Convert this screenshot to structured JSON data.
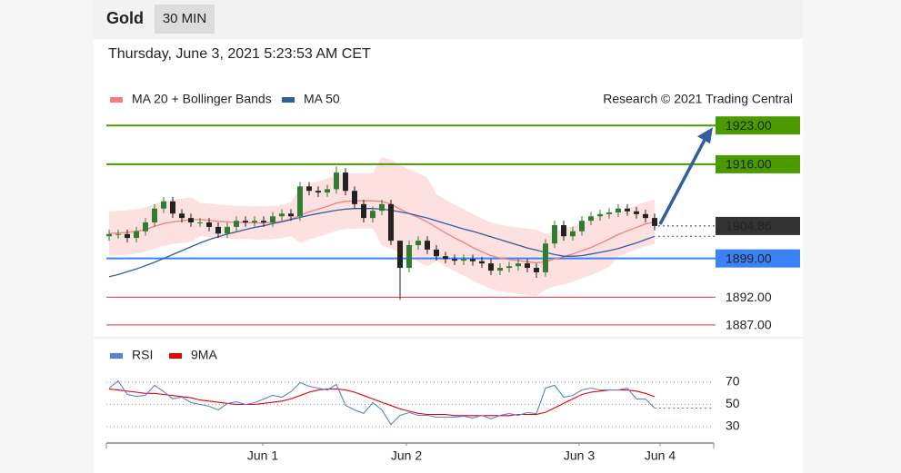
{
  "header": {
    "title": "Gold",
    "timeframe": "30 MIN",
    "timestamp": "Thursday, June 3, 2021 5:23:53 AM CET"
  },
  "chart_data": [
    {
      "type": "candlestick",
      "source": "Research © 2021 Trading Central",
      "x": [
        0,
        1,
        2,
        3,
        4,
        5,
        6,
        7,
        8,
        9,
        10,
        11,
        12,
        13,
        14,
        15,
        16,
        17,
        18,
        19,
        20,
        21,
        22,
        23,
        24,
        25,
        26,
        27,
        28,
        29,
        30,
        31,
        32,
        33,
        34,
        35,
        36,
        37,
        38,
        39,
        40,
        41,
        42,
        43,
        44,
        45,
        46,
        47,
        48,
        49,
        50,
        51,
        52,
        53,
        54,
        55,
        56,
        57,
        58,
        59,
        60
      ],
      "open": [
        1903.0,
        1903.4,
        1903.4,
        1902.7,
        1903.9,
        1905.5,
        1908.0,
        1909.3,
        1907.1,
        1906.3,
        1905.5,
        1905.5,
        1904.7,
        1903.5,
        1904.7,
        1905.8,
        1905.5,
        1905.8,
        1905.5,
        1906.6,
        1907.1,
        1906.6,
        1912.0,
        1911.2,
        1910.9,
        1911.5,
        1914.5,
        1911.2,
        1908.8,
        1906.3,
        1907.6,
        1908.8,
        1902.2,
        1897.3,
        1901.4,
        1902.2,
        1900.6,
        1899.4,
        1898.9,
        1898.6,
        1898.9,
        1898.5,
        1898.1,
        1896.8,
        1897.3,
        1897.6,
        1898.1,
        1897.3,
        1896.5,
        1901.7,
        1905.0,
        1903.0,
        1903.9,
        1905.8,
        1906.6,
        1907.0,
        1907.3,
        1908.0,
        1907.5,
        1907.0,
        1906.3
      ],
      "high": [
        1904.2,
        1904.2,
        1904.2,
        1904.7,
        1906.3,
        1908.8,
        1910.1,
        1910.1,
        1907.9,
        1907.1,
        1906.3,
        1906.3,
        1905.5,
        1905.5,
        1906.6,
        1906.6,
        1906.6,
        1906.6,
        1907.4,
        1907.9,
        1907.9,
        1912.8,
        1912.8,
        1912.0,
        1912.3,
        1915.6,
        1915.3,
        1912.0,
        1909.6,
        1908.4,
        1909.6,
        1909.6,
        1902.2,
        1902.2,
        1903.0,
        1903.0,
        1901.4,
        1900.2,
        1899.7,
        1899.7,
        1899.7,
        1899.3,
        1898.9,
        1898.1,
        1898.4,
        1898.9,
        1898.9,
        1898.1,
        1902.5,
        1905.8,
        1905.8,
        1904.7,
        1906.6,
        1907.4,
        1907.8,
        1908.1,
        1908.8,
        1908.8,
        1908.3,
        1907.8,
        1907.1
      ],
      "low": [
        1902.2,
        1902.6,
        1901.9,
        1901.9,
        1903.1,
        1904.7,
        1907.2,
        1906.3,
        1905.5,
        1904.7,
        1904.7,
        1903.9,
        1902.7,
        1902.7,
        1903.9,
        1904.7,
        1904.7,
        1904.7,
        1904.7,
        1905.8,
        1905.8,
        1905.8,
        1910.4,
        1910.1,
        1910.1,
        1910.7,
        1910.4,
        1908.0,
        1905.5,
        1905.5,
        1906.8,
        1901.4,
        1891.5,
        1896.5,
        1900.6,
        1899.8,
        1898.6,
        1898.1,
        1897.8,
        1897.8,
        1897.7,
        1897.3,
        1896.0,
        1896.0,
        1896.5,
        1896.8,
        1896.5,
        1895.5,
        1895.7,
        1900.9,
        1902.2,
        1902.2,
        1903.1,
        1905.0,
        1905.8,
        1906.2,
        1906.5,
        1906.7,
        1906.2,
        1905.5,
        1904.1
      ],
      "close": [
        1903.4,
        1903.4,
        1902.7,
        1903.9,
        1905.5,
        1908.0,
        1909.3,
        1907.1,
        1906.3,
        1905.5,
        1905.5,
        1904.7,
        1903.5,
        1904.7,
        1905.8,
        1905.5,
        1905.8,
        1905.5,
        1906.6,
        1907.1,
        1906.6,
        1912.0,
        1911.2,
        1910.9,
        1911.5,
        1914.5,
        1911.2,
        1908.8,
        1906.3,
        1907.6,
        1908.8,
        1902.2,
        1897.3,
        1901.4,
        1902.2,
        1900.6,
        1899.4,
        1898.9,
        1898.6,
        1898.9,
        1898.5,
        1898.1,
        1896.8,
        1897.3,
        1897.6,
        1898.1,
        1897.3,
        1896.5,
        1901.7,
        1905.0,
        1903.0,
        1903.9,
        1905.8,
        1906.6,
        1907.0,
        1907.3,
        1908.0,
        1907.5,
        1907.0,
        1906.3,
        1904.86
      ],
      "up_color": "#2e7d32",
      "down_color": "#222222",
      "series": [
        {
          "name": "MA 20 + Bollinger Bands",
          "color": "#f08080",
          "values": [
            1903.5,
            1903.6,
            1903.7,
            1903.9,
            1904.2,
            1904.8,
            1905.3,
            1905.6,
            1905.8,
            1906,
            1906,
            1905.9,
            1905.7,
            1905.6,
            1905.5,
            1905.5,
            1905.4,
            1905.4,
            1905.5,
            1905.7,
            1906.1,
            1906.8,
            1907.4,
            1907.9,
            1908.4,
            1909,
            1909.3,
            1909.4,
            1909.4,
            1909.4,
            1909.3,
            1908.8,
            1907.9,
            1907.1,
            1906.4,
            1905.6,
            1904.6,
            1903.6,
            1902.7,
            1901.9,
            1901,
            1900.2,
            1899.5,
            1899.1,
            1898.8,
            1898.6,
            1898.4,
            1898.2,
            1898.4,
            1898.9,
            1899.3,
            1899.8,
            1900.4,
            1901,
            1901.7,
            1902.5,
            1903.3,
            1904,
            1904.6,
            1905.2,
            1905.6
          ]
        },
        {
          "name": "MA 50",
          "color": "#2f5f9e",
          "values": [
            1895.7,
            1896.1,
            1896.6,
            1897.1,
            1897.7,
            1898.3,
            1899,
            1899.7,
            1900.4,
            1901.1,
            1901.8,
            1902.4,
            1902.9,
            1903.4,
            1903.8,
            1904.2,
            1904.6,
            1904.9,
            1905.3,
            1905.6,
            1906,
            1906.4,
            1906.8,
            1907.1,
            1907.4,
            1907.7,
            1907.9,
            1908,
            1908,
            1908,
            1907.9,
            1907.7,
            1907.4,
            1907.1,
            1906.7,
            1906.3,
            1905.8,
            1905.3,
            1904.8,
            1904.3,
            1903.9,
            1903.4,
            1902.9,
            1902.4,
            1901.9,
            1901.4,
            1900.9,
            1900.5,
            1900.1,
            1899.7,
            1899.4,
            1899.4,
            1899.5,
            1899.8,
            1900.1,
            1900.4,
            1900.8,
            1901.3,
            1901.8,
            1902.4,
            1903
          ]
        }
      ],
      "bands": {
        "color": "#fde0e0",
        "upper": [
          1907.5,
          1907.6,
          1907.7,
          1907.9,
          1908.2,
          1908.8,
          1909.3,
          1909.6,
          1909.8,
          1910,
          1909,
          1908.9,
          1908.7,
          1908.6,
          1908.5,
          1908.5,
          1908.4,
          1908.4,
          1908.5,
          1908.7,
          1909.1,
          1911.8,
          1912.4,
          1912.9,
          1913.4,
          1914,
          1914.3,
          1914.4,
          1914.4,
          1914.4,
          1917.3,
          1916.8,
          1915.9,
          1915.1,
          1914.4,
          1913.6,
          1910.6,
          1909.6,
          1908.7,
          1907.9,
          1907,
          1906.2,
          1905.5,
          1905.1,
          1904.8,
          1904.6,
          1904.4,
          1904.2,
          1903.4,
          1903.9,
          1904.3,
          1904.8,
          1905.4,
          1906,
          1906.7,
          1907.5,
          1907.3,
          1908,
          1908.6,
          1909.2,
          1909.6
        ],
        "lower": [
          1899.5,
          1899.6,
          1899.7,
          1899.9,
          1900.2,
          1900.8,
          1901.3,
          1901.6,
          1901.8,
          1902,
          1903,
          1902.9,
          1902.7,
          1902.6,
          1902.5,
          1902.5,
          1902.4,
          1902.4,
          1902.5,
          1902.7,
          1903.1,
          1901.8,
          1902.4,
          1902.9,
          1903.4,
          1904,
          1904.3,
          1904.4,
          1904.4,
          1904.4,
          1901.3,
          1900.8,
          1899.9,
          1899.1,
          1898.4,
          1897.6,
          1898.6,
          1897.6,
          1896.7,
          1895.9,
          1895,
          1894.2,
          1893.5,
          1893.1,
          1892.8,
          1892.6,
          1892.4,
          1892.2,
          1893.4,
          1893.9,
          1894.3,
          1894.8,
          1895.4,
          1896,
          1896.7,
          1897.5,
          1899.3,
          1900,
          1900.6,
          1901.2,
          1901.6
        ]
      },
      "levels": [
        {
          "value": 1923,
          "label": "1923.00",
          "color": "#4a9a00",
          "style": "box"
        },
        {
          "value": 1916,
          "label": "1916.00",
          "color": "#4a9a00",
          "style": "box"
        },
        {
          "value": 1899,
          "label": "1899.00",
          "color": "#3b82f6",
          "style": "box"
        },
        {
          "value": 1892,
          "label": "1892.00",
          "color": "#e60000",
          "style": "text"
        },
        {
          "value": 1887,
          "label": "1887.00",
          "color": "#e60000",
          "style": "text"
        }
      ],
      "last_price": 1904.86,
      "xlim": [
        -0.3,
        66.5
      ],
      "ylim": [
        1886,
        1925
      ]
    },
    {
      "type": "line",
      "x": [
        0,
        1,
        2,
        3,
        4,
        5,
        6,
        7,
        8,
        9,
        10,
        11,
        12,
        13,
        14,
        15,
        16,
        17,
        18,
        19,
        20,
        21,
        22,
        23,
        24,
        25,
        26,
        27,
        28,
        29,
        30,
        31,
        32,
        33,
        34,
        35,
        36,
        37,
        38,
        39,
        40,
        41,
        42,
        43,
        44,
        45,
        46,
        47,
        48,
        49,
        50,
        51,
        52,
        53,
        54,
        55,
        56,
        57,
        58,
        59,
        60
      ],
      "series": [
        {
          "name": "RSI",
          "color": "#5b7fd6",
          "values": [
            64.7,
            71.2,
            59,
            57.3,
            58.2,
            67.3,
            61.6,
            55.1,
            56.7,
            51.8,
            50,
            48.4,
            45.1,
            50.8,
            52.4,
            50,
            51.6,
            54.9,
            58.2,
            56.5,
            61.4,
            69.6,
            66.3,
            64.7,
            63.1,
            68,
            49.2,
            45.1,
            42,
            51.6,
            45.1,
            32,
            40.2,
            42.7,
            40.2,
            40.2,
            38.6,
            38.6,
            38.6,
            39.4,
            37.8,
            40.2,
            37,
            40.2,
            41.8,
            40.2,
            42.7,
            41.8,
            64.7,
            67.3,
            56.5,
            58.2,
            63.1,
            64.7,
            63.1,
            63.1,
            63.1,
            64.7,
            54.9,
            54.9,
            46.7
          ]
        },
        {
          "name": "9MA",
          "color": "#e60000",
          "values": [
            64,
            63,
            62,
            61,
            60,
            60,
            59,
            58,
            57,
            56,
            54,
            53,
            52,
            51,
            50,
            50,
            50,
            51,
            52,
            53,
            55,
            58,
            61,
            63,
            64,
            64,
            63,
            61,
            58,
            55,
            52,
            49,
            46,
            44,
            42,
            41,
            41,
            41,
            40,
            40,
            40,
            40,
            40,
            40,
            40,
            41,
            41,
            41,
            43,
            47,
            51,
            55,
            59,
            61,
            62,
            63,
            63,
            63,
            62,
            60,
            57
          ]
        }
      ],
      "xlim": [
        -0.3,
        66.5
      ],
      "ylim": [
        20,
        100
      ],
      "yticks": [
        30,
        50,
        70
      ],
      "grid": true,
      "xticks": [
        {
          "value": 16.9,
          "label": "Jun 1"
        },
        {
          "value": 32.7,
          "label": "Jun 2"
        },
        {
          "value": 51.7,
          "label": "Jun 3"
        },
        {
          "value": 60.6,
          "label": "Jun 4"
        }
      ]
    }
  ]
}
